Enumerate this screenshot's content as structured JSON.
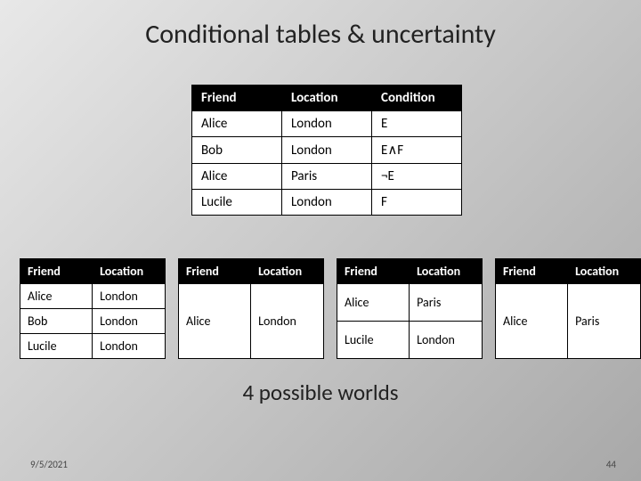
{
  "title": "Conditional tables & uncertainty",
  "subtitle": "4 possible worlds",
  "footer": {
    "date": "9/5/2021",
    "page": "44"
  },
  "main_table": {
    "headers": [
      "Friend",
      "Location",
      "Condition"
    ],
    "rows": [
      [
        "Alice",
        "London",
        "E"
      ],
      [
        "Bob",
        "London",
        "E∧F"
      ],
      [
        "Alice",
        "Paris",
        "¬E"
      ],
      [
        "Lucile",
        "London",
        "F"
      ]
    ],
    "header_bg": "#000000",
    "header_fg": "#ffffff",
    "cell_bg": "#ffffff",
    "border_color": "#000000"
  },
  "world_tables": [
    {
      "headers": [
        "Friend",
        "Location"
      ],
      "rows": [
        [
          "Alice",
          "London"
        ],
        [
          "Bob",
          "London"
        ],
        [
          "Lucile",
          "London"
        ]
      ]
    },
    {
      "headers": [
        "Friend",
        "Location"
      ],
      "rows": [
        [
          "Alice",
          "London"
        ]
      ]
    },
    {
      "headers": [
        "Friend",
        "Location"
      ],
      "rows": [
        [
          "Alice",
          "Paris"
        ],
        [
          "Lucile",
          "London"
        ]
      ]
    },
    {
      "headers": [
        "Friend",
        "Location"
      ],
      "rows": [
        [
          "Alice",
          "Paris"
        ]
      ]
    }
  ]
}
